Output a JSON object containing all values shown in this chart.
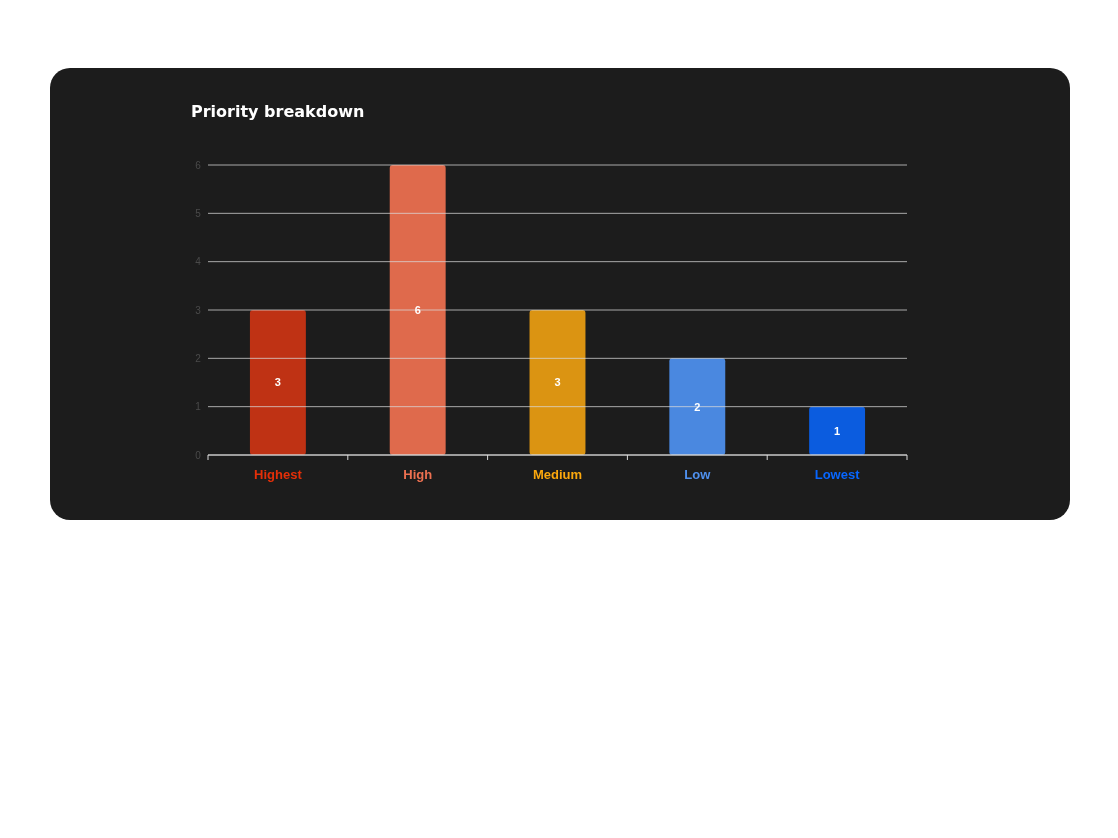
{
  "chart_data": {
    "type": "bar",
    "title": "Priority breakdown",
    "categories": [
      "Highest",
      "High",
      "Medium",
      "Low",
      "Lowest"
    ],
    "values": [
      3,
      6,
      3,
      2,
      1
    ],
    "colors": [
      "#bf3214",
      "#df6a4c",
      "#db9412",
      "#4a88e0",
      "#0b5cdf"
    ],
    "ylim": [
      0,
      6
    ],
    "yticks": [
      0,
      1,
      2,
      3,
      4,
      5,
      6
    ],
    "grid": "y",
    "data_labels": true
  }
}
